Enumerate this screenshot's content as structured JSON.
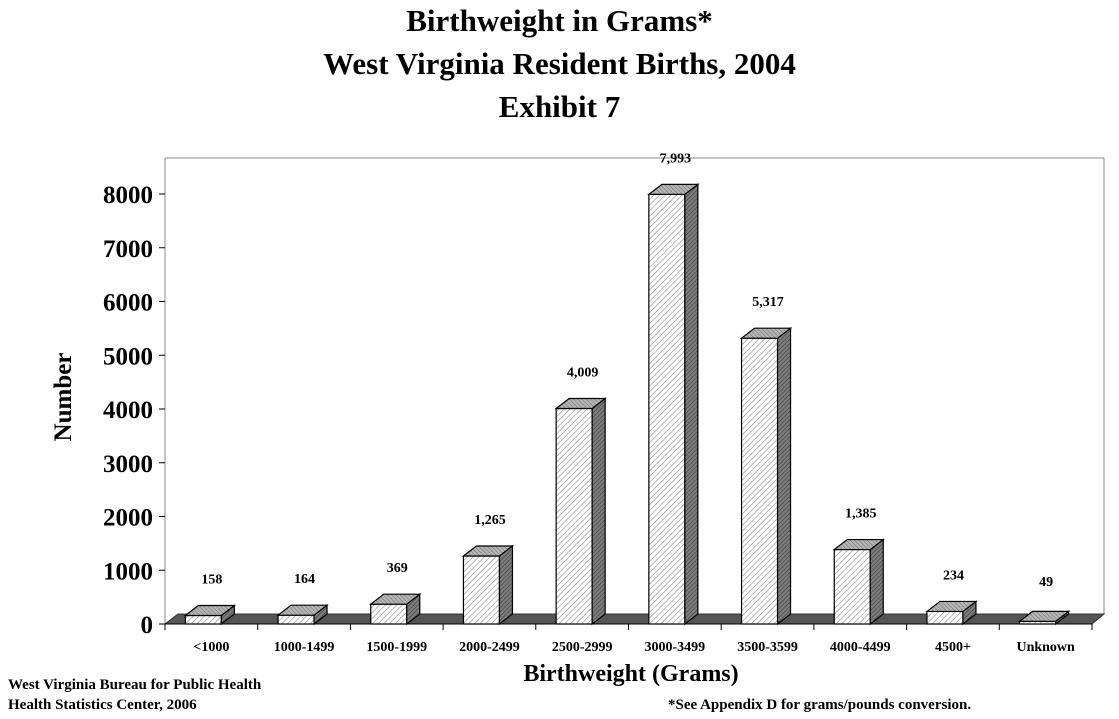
{
  "chart_data": {
    "type": "bar",
    "title": [
      "Birthweight in Grams*",
      "West Virginia Resident Births, 2004",
      "Exhibit 7"
    ],
    "xlabel": "Birthweight (Grams)",
    "ylabel": "Number",
    "ylim": [
      0,
      8000
    ],
    "yticks": [
      0,
      1000,
      2000,
      3000,
      4000,
      5000,
      6000,
      7000,
      8000
    ],
    "categories": [
      "<1000",
      "1000-1499",
      "1500-1999",
      "2000-2499",
      "2500-2999",
      "3000-3499",
      "3500-3599",
      "4000-4499",
      "4500+",
      "Unknown"
    ],
    "values": [
      158,
      164,
      369,
      1265,
      4009,
      7993,
      5317,
      1385,
      234,
      49
    ],
    "value_labels": [
      "158",
      "164",
      "369",
      "1,265",
      "4,009",
      "7,993",
      "5,317",
      "1,385",
      "234",
      "49"
    ],
    "grid": false,
    "style": "3d-hatched"
  },
  "footer": {
    "source_line1": "West Virginia Bureau for Public Health",
    "source_line2": "Health Statistics Center, 2006",
    "note": "*See Appendix D for grams/pounds conversion."
  }
}
